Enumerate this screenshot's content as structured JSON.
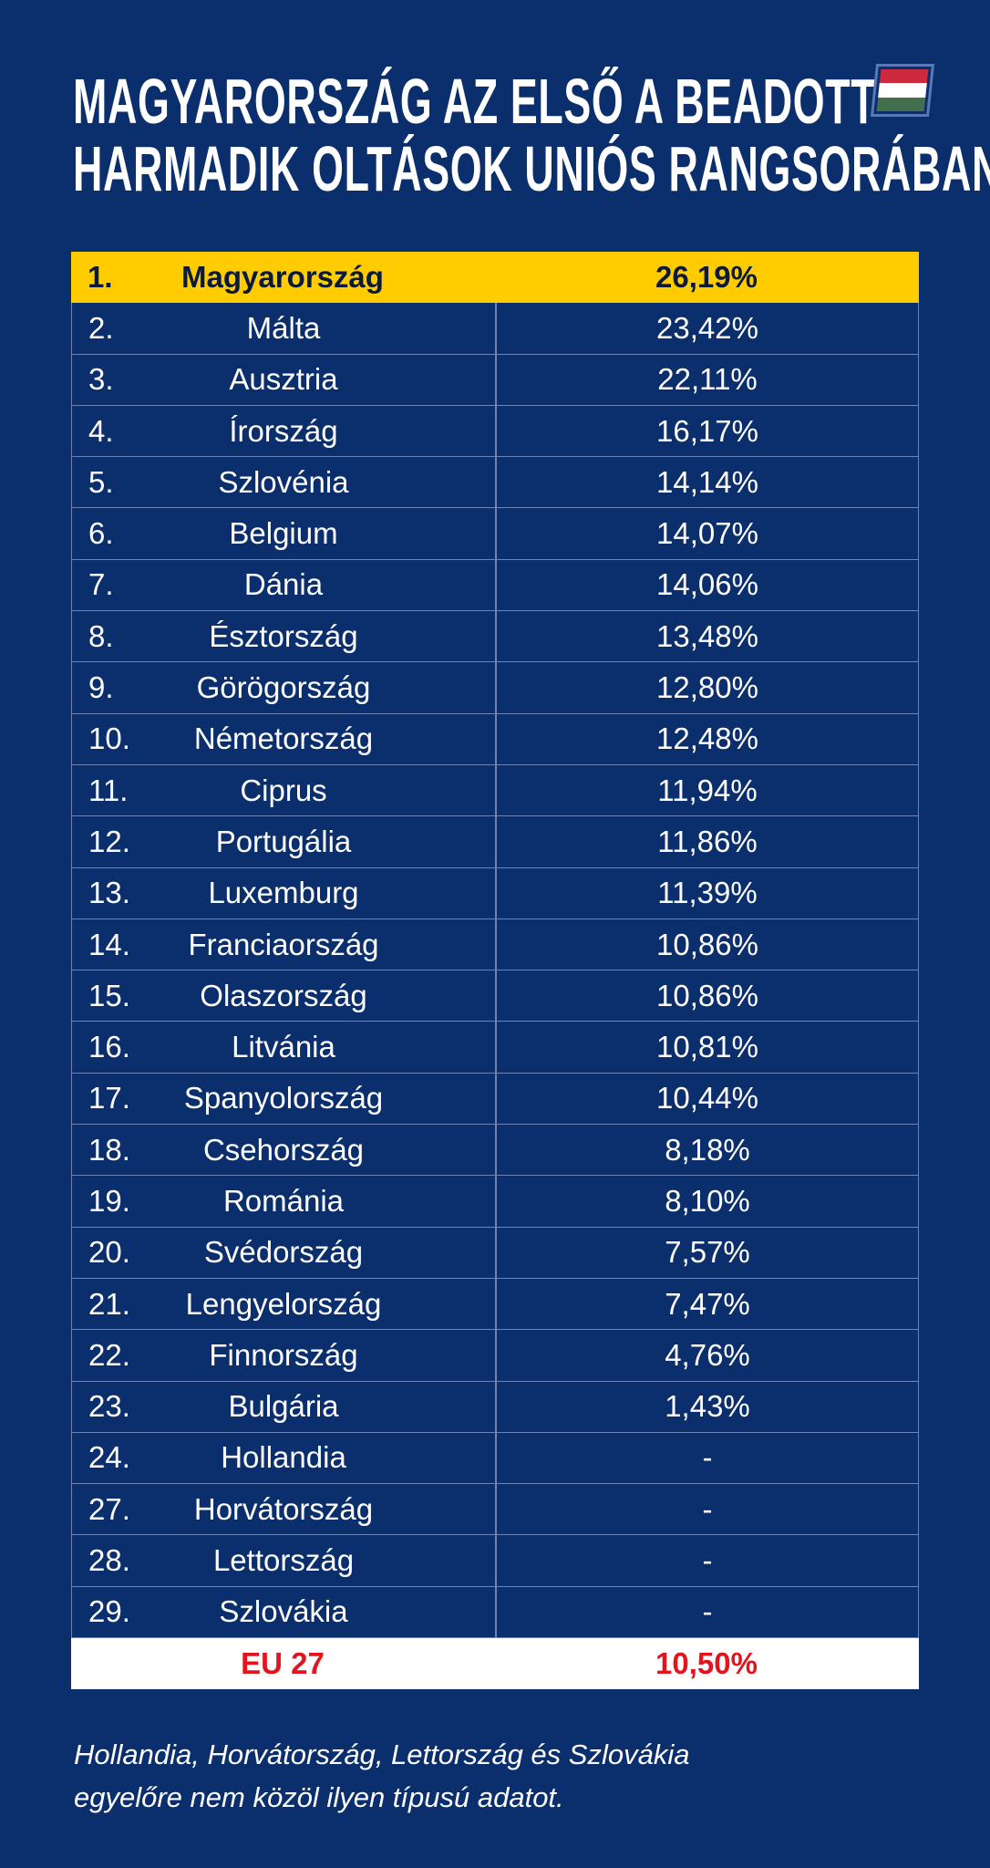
{
  "title": {
    "line1": "MAGYARORSZÁG AZ ELSŐ A BEADOTT",
    "line2": "HARMADIK OLTÁSOK UNIÓS RANGSORÁBAN"
  },
  "flag": {
    "icon": "hungarian-flag-icon",
    "colors": [
      "#cd2a3e",
      "#ffffff",
      "#436f4d"
    ]
  },
  "colors": {
    "background": "#0b2e6c",
    "highlight": "#ffcc00",
    "eu_text": "#e3141d"
  },
  "rows": [
    {
      "rank": "1.",
      "country": "Magyarország",
      "value": "26,19%"
    },
    {
      "rank": "2.",
      "country": "Málta",
      "value": "23,42%"
    },
    {
      "rank": "3.",
      "country": "Ausztria",
      "value": "22,11%"
    },
    {
      "rank": "4.",
      "country": "Írország",
      "value": "16,17%"
    },
    {
      "rank": "5.",
      "country": "Szlovénia",
      "value": "14,14%"
    },
    {
      "rank": "6.",
      "country": "Belgium",
      "value": "14,07%"
    },
    {
      "rank": "7.",
      "country": "Dánia",
      "value": "14,06%"
    },
    {
      "rank": "8.",
      "country": "Észtország",
      "value": "13,48%"
    },
    {
      "rank": "9.",
      "country": "Görögország",
      "value": "12,80%"
    },
    {
      "rank": "10.",
      "country": "Németország",
      "value": "12,48%"
    },
    {
      "rank": "11.",
      "country": "Ciprus",
      "value": "11,94%"
    },
    {
      "rank": "12.",
      "country": "Portugália",
      "value": "11,86%"
    },
    {
      "rank": "13.",
      "country": "Luxemburg",
      "value": "11,39%"
    },
    {
      "rank": "14.",
      "country": "Franciaország",
      "value": "10,86%"
    },
    {
      "rank": "15.",
      "country": "Olaszország",
      "value": "10,86%"
    },
    {
      "rank": "16.",
      "country": "Litvánia",
      "value": "10,81%"
    },
    {
      "rank": "17.",
      "country": "Spanyolország",
      "value": "10,44%"
    },
    {
      "rank": "18.",
      "country": "Csehország",
      "value": "8,18%"
    },
    {
      "rank": "19.",
      "country": "Románia",
      "value": "8,10%"
    },
    {
      "rank": "20.",
      "country": "Svédország",
      "value": "7,57%"
    },
    {
      "rank": "21.",
      "country": "Lengyelország",
      "value": "7,47%"
    },
    {
      "rank": "22.",
      "country": "Finnország",
      "value": "4,76%"
    },
    {
      "rank": "23.",
      "country": "Bulgária",
      "value": "1,43%"
    },
    {
      "rank": "24.",
      "country": "Hollandia",
      "value": "-"
    },
    {
      "rank": "27.",
      "country": "Horvátország",
      "value": "-"
    },
    {
      "rank": "28.",
      "country": "Lettország",
      "value": "-"
    },
    {
      "rank": "29.",
      "country": "Szlovákia",
      "value": "-"
    }
  ],
  "eu": {
    "label": "EU 27",
    "value": "10,50%"
  },
  "note": {
    "line1": "Hollandia, Horvátország, Lettország és Szlovákia",
    "line2": "egyelőre nem közöl ilyen típusú adatot."
  }
}
